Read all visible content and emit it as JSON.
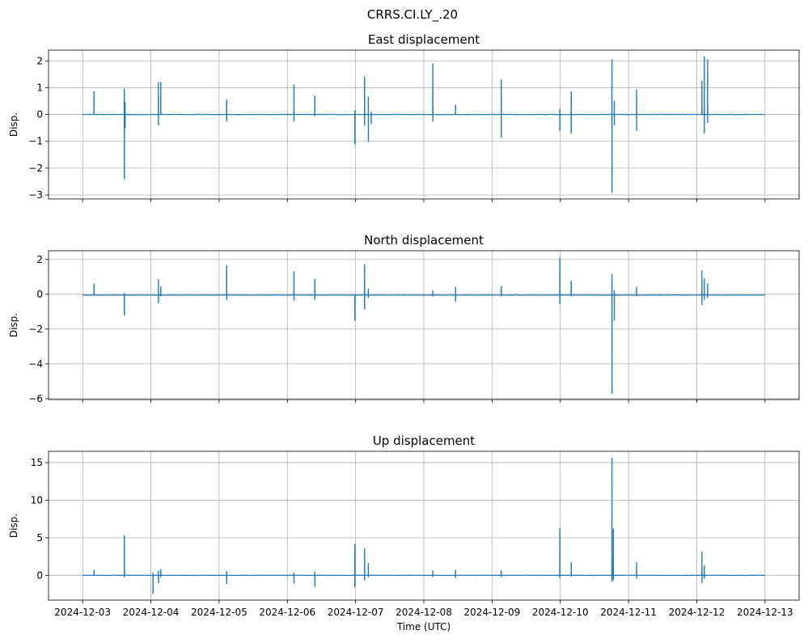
{
  "suptitle": "CRRS.CI.LY_.20",
  "chart_data": [
    {
      "type": "line",
      "title": "East displacement",
      "ylabel": "Disp.",
      "xlabel": "",
      "ylim": [
        -3.15,
        2.4
      ],
      "yticks": [
        -3,
        -2,
        -1,
        0,
        1,
        2
      ],
      "grid": true,
      "color": "#1f77b4",
      "baseline": 0.0,
      "events": [
        {
          "x": "2024-12-03T04:00",
          "min": 0.0,
          "max": 0.85
        },
        {
          "x": "2024-12-03T14:40",
          "min": -2.4,
          "max": 0.95
        },
        {
          "x": "2024-12-03T14:55",
          "min": -0.5,
          "max": 0.45
        },
        {
          "x": "2024-12-04T02:40",
          "min": -0.4,
          "max": 1.2
        },
        {
          "x": "2024-12-04T03:30",
          "min": 0.0,
          "max": 1.2
        },
        {
          "x": "2024-12-05T02:40",
          "min": -0.25,
          "max": 0.55
        },
        {
          "x": "2024-12-06T02:20",
          "min": -0.25,
          "max": 1.1
        },
        {
          "x": "2024-12-06T09:40",
          "min": -0.05,
          "max": 0.68
        },
        {
          "x": "2024-12-06T23:45",
          "min": -1.1,
          "max": 0.15
        },
        {
          "x": "2024-12-07T03:10",
          "min": -0.4,
          "max": 1.4
        },
        {
          "x": "2024-12-07T04:30",
          "min": -1.0,
          "max": 0.65
        },
        {
          "x": "2024-12-07T05:30",
          "min": -0.35,
          "max": 0.1
        },
        {
          "x": "2024-12-08T03:10",
          "min": -0.25,
          "max": 1.9
        },
        {
          "x": "2024-12-08T11:10",
          "min": 0.0,
          "max": 0.35
        },
        {
          "x": "2024-12-09T03:15",
          "min": -0.85,
          "max": 1.3
        },
        {
          "x": "2024-12-09T23:50",
          "min": -0.6,
          "max": 0.2
        },
        {
          "x": "2024-12-10T03:50",
          "min": -0.7,
          "max": 0.85
        },
        {
          "x": "2024-12-10T18:10",
          "min": -2.9,
          "max": 2.05
        },
        {
          "x": "2024-12-10T19:00",
          "min": -0.4,
          "max": 0.5
        },
        {
          "x": "2024-12-11T02:50",
          "min": -0.6,
          "max": 0.92
        },
        {
          "x": "2024-12-12T01:50",
          "min": 0.0,
          "max": 1.25
        },
        {
          "x": "2024-12-12T02:40",
          "min": -0.7,
          "max": 2.15
        },
        {
          "x": "2024-12-12T03:50",
          "min": -0.3,
          "max": 2.05
        }
      ]
    },
    {
      "type": "line",
      "title": "North displacement",
      "ylabel": "Disp.",
      "xlabel": "",
      "ylim": [
        -6.05,
        2.5
      ],
      "yticks": [
        -6,
        -4,
        -2,
        0,
        2
      ],
      "grid": true,
      "color": "#1f77b4",
      "baseline": -0.05,
      "events": [
        {
          "x": "2024-12-03T04:00",
          "min": -0.05,
          "max": 0.6
        },
        {
          "x": "2024-12-03T14:40",
          "min": -1.2,
          "max": 0.05
        },
        {
          "x": "2024-12-04T02:40",
          "min": -0.5,
          "max": 0.85
        },
        {
          "x": "2024-12-04T03:30",
          "min": -0.1,
          "max": 0.45
        },
        {
          "x": "2024-12-05T02:40",
          "min": -0.3,
          "max": 1.65
        },
        {
          "x": "2024-12-06T02:20",
          "min": -0.35,
          "max": 1.3
        },
        {
          "x": "2024-12-06T09:40",
          "min": -0.3,
          "max": 0.85
        },
        {
          "x": "2024-12-06T23:45",
          "min": -1.5,
          "max": -0.05
        },
        {
          "x": "2024-12-07T03:10",
          "min": -0.85,
          "max": 1.7
        },
        {
          "x": "2024-12-07T04:30",
          "min": -0.2,
          "max": 0.3
        },
        {
          "x": "2024-12-08T03:10",
          "min": -0.1,
          "max": 0.2
        },
        {
          "x": "2024-12-08T11:10",
          "min": -0.4,
          "max": 0.4
        },
        {
          "x": "2024-12-09T03:15",
          "min": -0.1,
          "max": 0.45
        },
        {
          "x": "2024-12-09T23:50",
          "min": -0.55,
          "max": 2.1
        },
        {
          "x": "2024-12-10T03:50",
          "min": -0.1,
          "max": 0.75
        },
        {
          "x": "2024-12-10T18:10",
          "min": -5.7,
          "max": 1.15
        },
        {
          "x": "2024-12-10T19:00",
          "min": -1.5,
          "max": 0.2
        },
        {
          "x": "2024-12-11T02:50",
          "min": -0.1,
          "max": 0.4
        },
        {
          "x": "2024-12-12T01:50",
          "min": -0.6,
          "max": 1.35
        },
        {
          "x": "2024-12-12T02:40",
          "min": -0.3,
          "max": 0.9
        },
        {
          "x": "2024-12-12T03:50",
          "min": -0.2,
          "max": 0.6
        }
      ]
    },
    {
      "type": "line",
      "title": "Up displacement",
      "ylabel": "Disp.",
      "xlabel": "Time (UTC)",
      "ylim": [
        -3.3,
        16.5
      ],
      "yticks": [
        0,
        5,
        10,
        15
      ],
      "grid": true,
      "color": "#1f77b4",
      "baseline": 0.0,
      "events": [
        {
          "x": "2024-12-03T04:00",
          "min": 0.0,
          "max": 0.7
        },
        {
          "x": "2024-12-03T14:40",
          "min": -0.2,
          "max": 5.3
        },
        {
          "x": "2024-12-04T00:45",
          "min": -2.4,
          "max": 0.3
        },
        {
          "x": "2024-12-04T02:40",
          "min": -1.0,
          "max": 0.6
        },
        {
          "x": "2024-12-04T03:30",
          "min": -0.2,
          "max": 0.8
        },
        {
          "x": "2024-12-05T02:40",
          "min": -1.1,
          "max": 0.5
        },
        {
          "x": "2024-12-06T02:20",
          "min": -1.0,
          "max": 0.3
        },
        {
          "x": "2024-12-06T09:40",
          "min": -1.5,
          "max": 0.4
        },
        {
          "x": "2024-12-06T23:45",
          "min": -1.5,
          "max": 4.1
        },
        {
          "x": "2024-12-07T03:10",
          "min": -0.6,
          "max": 3.5
        },
        {
          "x": "2024-12-07T04:30",
          "min": -0.2,
          "max": 1.6
        },
        {
          "x": "2024-12-08T03:10",
          "min": -0.2,
          "max": 0.6
        },
        {
          "x": "2024-12-08T11:10",
          "min": -0.3,
          "max": 0.7
        },
        {
          "x": "2024-12-09T03:15",
          "min": -0.2,
          "max": 0.6
        },
        {
          "x": "2024-12-09T23:50",
          "min": -0.3,
          "max": 6.2
        },
        {
          "x": "2024-12-10T03:50",
          "min": -0.1,
          "max": 1.7
        },
        {
          "x": "2024-12-10T18:10",
          "min": -0.8,
          "max": 15.6
        },
        {
          "x": "2024-12-10T18:40",
          "min": -0.6,
          "max": 6.2
        },
        {
          "x": "2024-12-11T02:50",
          "min": -0.4,
          "max": 1.7
        },
        {
          "x": "2024-12-12T01:50",
          "min": -1.0,
          "max": 3.1
        },
        {
          "x": "2024-12-12T02:40",
          "min": -0.4,
          "max": 1.3
        }
      ]
    }
  ],
  "x_axis": {
    "range": [
      "2024-12-03",
      "2024-12-13"
    ],
    "tick_labels": [
      "2024-12-03",
      "2024-12-04",
      "2024-12-05",
      "2024-12-06",
      "2024-12-07",
      "2024-12-08",
      "2024-12-09",
      "2024-12-10",
      "2024-12-11",
      "2024-12-12",
      "2024-12-13"
    ]
  }
}
